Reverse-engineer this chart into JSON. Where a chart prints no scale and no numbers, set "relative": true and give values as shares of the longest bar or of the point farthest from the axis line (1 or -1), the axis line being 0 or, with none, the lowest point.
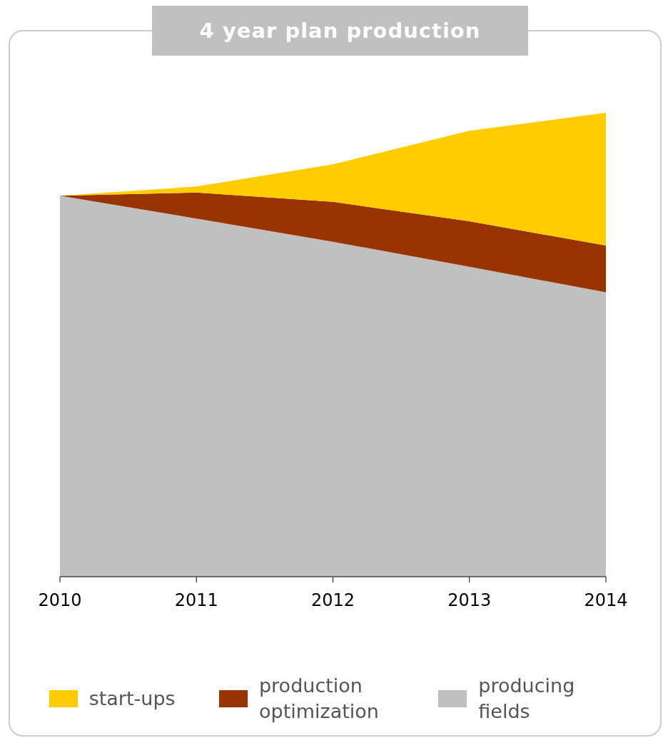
{
  "chart_data": {
    "type": "area",
    "title": "4 year plan production",
    "categories": [
      "2010",
      "2011",
      "2012",
      "2013",
      "2014"
    ],
    "stacked": true,
    "relative": true,
    "legend": "bottom",
    "grid": false,
    "series": [
      {
        "name": "producing fields",
        "color": "#c0c0c0",
        "values": [
          0.821,
          0.772,
          0.722,
          0.668,
          0.613
        ]
      },
      {
        "name": "production optimization",
        "color": "#993300",
        "values": [
          0,
          0.056,
          0.086,
          0.098,
          0.101
        ]
      },
      {
        "name": "start-ups",
        "color": "#ffcc00",
        "values": [
          0,
          0.013,
          0.081,
          0.195,
          0.286
        ]
      }
    ]
  }
}
